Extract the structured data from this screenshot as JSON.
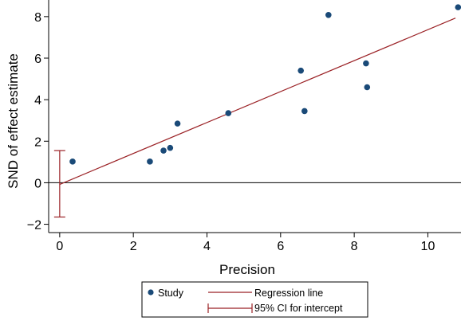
{
  "chart_data": {
    "type": "scatter",
    "xlabel": "Precision",
    "ylabel": "SND of effect estimate",
    "xlim": [
      -0.3,
      10.9
    ],
    "ylim": [
      -2.4,
      8.8
    ],
    "x_ticks": [
      0,
      2,
      4,
      6,
      8,
      10
    ],
    "y_ticks": [
      -2,
      0,
      2,
      4,
      6,
      8
    ],
    "x_tick_labels": [
      "0",
      "2",
      "4",
      "6",
      "8",
      "10"
    ],
    "y_tick_labels": [
      "−2",
      "0",
      "2",
      "4",
      "6",
      "8"
    ],
    "grid": false,
    "legend_position": "bottom",
    "series": [
      {
        "name": "Study",
        "type": "scatter",
        "color": "#1a4a78",
        "x": [
          0.35,
          2.45,
          2.82,
          3.0,
          3.2,
          4.58,
          6.55,
          6.65,
          7.3,
          8.32,
          8.35,
          10.82
        ],
        "y": [
          1.02,
          1.02,
          1.55,
          1.68,
          2.85,
          3.35,
          5.4,
          3.45,
          8.08,
          5.75,
          4.6,
          8.45
        ]
      }
    ],
    "regression_line": {
      "name": "Regression line",
      "color": "#9b2226",
      "intercept": -0.08,
      "slope": 0.745,
      "x_range": [
        0,
        10.75
      ]
    },
    "intercept_ci": {
      "name": "95% CI for intercept",
      "color": "#9b2226",
      "x": 0,
      "lower": -1.65,
      "upper": 1.55
    },
    "reference_line": {
      "y": 0,
      "color": "#000000"
    },
    "legend": [
      {
        "label": "Study",
        "kind": "marker"
      },
      {
        "label": "Regression line",
        "kind": "line"
      },
      {
        "label": "95% CI for intercept",
        "kind": "ci"
      }
    ]
  }
}
